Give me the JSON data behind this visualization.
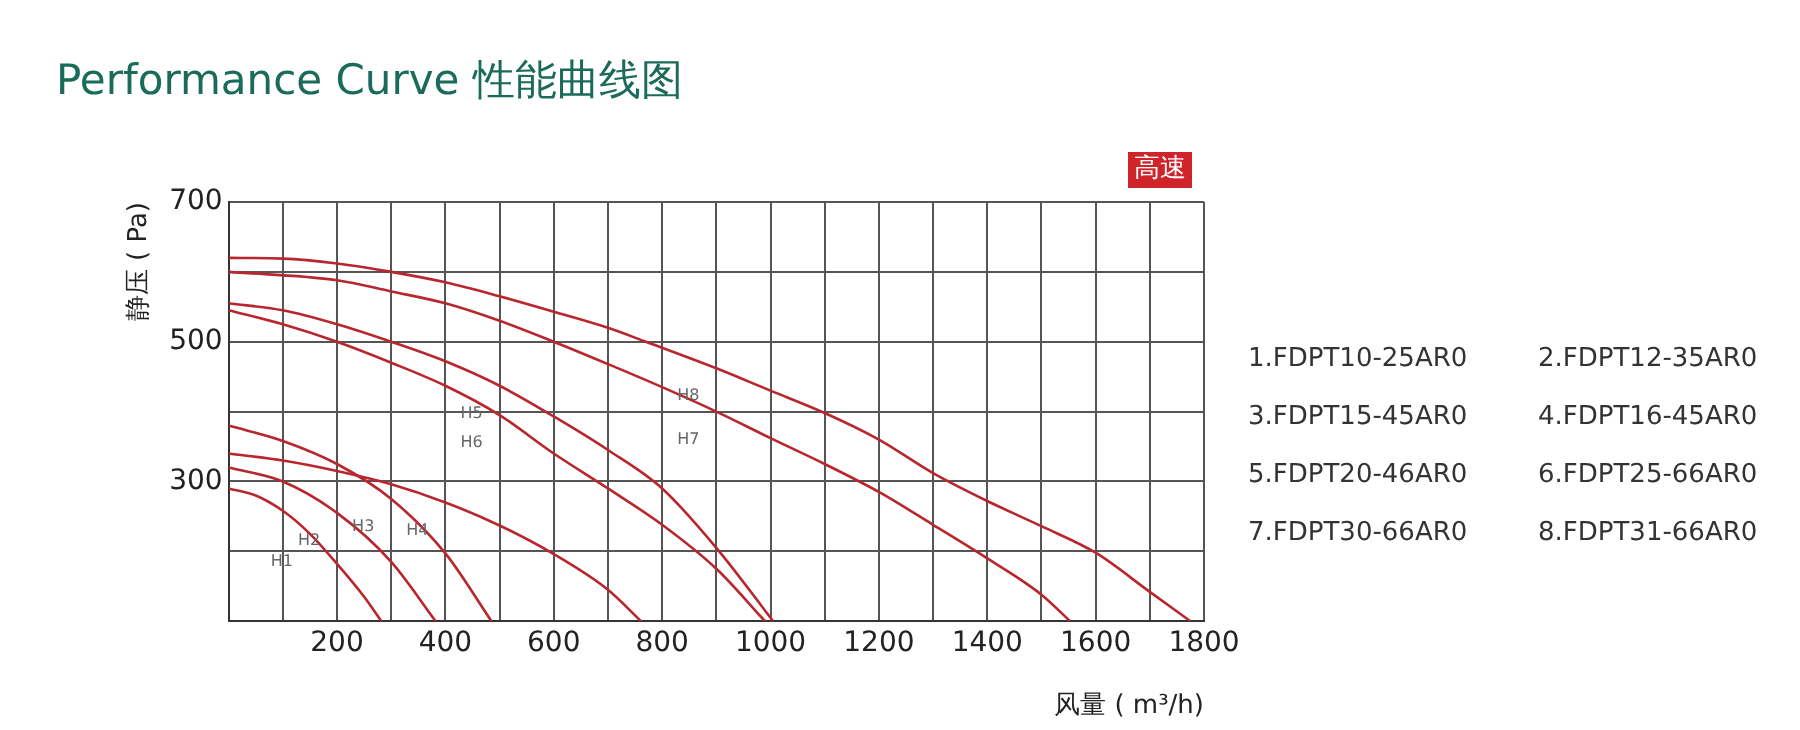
{
  "chart_data": {
    "type": "line",
    "title": "Performance Curve 性能曲线图",
    "xlabel": "风量 ( m³/h)",
    "ylabel": "静压 ( Pa)",
    "xlim": [
      0,
      1800
    ],
    "ylim": [
      100,
      700
    ],
    "xticks": [
      {
        "value": 0,
        "label": null
      },
      {
        "value": 100,
        "label": null
      },
      200,
      {
        "value": 300,
        "label": null
      },
      400,
      {
        "value": 500,
        "label": null
      },
      600,
      {
        "value": 700,
        "label": null
      },
      800,
      {
        "value": 900,
        "label": null
      },
      1000,
      {
        "value": 1100,
        "label": null
      },
      1200,
      {
        "value": 1300,
        "label": null
      },
      1400,
      {
        "value": 1500,
        "label": null
      },
      1600,
      {
        "value": 1700,
        "label": null
      },
      1800
    ],
    "yticks": [
      {
        "value": 100,
        "label": null
      },
      {
        "value": 200,
        "label": null
      },
      300,
      {
        "value": 400,
        "label": null
      },
      500,
      {
        "value": 600,
        "label": null
      },
      700
    ],
    "grid": true,
    "legend": "right",
    "marker": "none",
    "line_style": "solid",
    "series": [
      {
        "name": "1.FDPT10-25AR0",
        "color": "#b8262e",
        "x": [
          0,
          50,
          100,
          150,
          200,
          250,
          282
        ],
        "values": [
          290,
          280,
          258,
          225,
          182,
          135,
          100
        ]
      },
      {
        "name": "2.FDPT12-35AR0",
        "color": "#b8262e",
        "x": [
          0,
          100,
          200,
          300,
          382
        ],
        "values": [
          320,
          300,
          255,
          185,
          100
        ]
      },
      {
        "name": "3.FDPT15-45AR0",
        "color": "#b8262e",
        "x": [
          0,
          100,
          200,
          300,
          400,
          485
        ],
        "values": [
          380,
          358,
          325,
          275,
          197,
          100
        ]
      },
      {
        "name": "4.FDPT16-45AR0",
        "color": "#b8262e",
        "x": [
          0,
          100,
          200,
          300,
          400,
          500,
          600,
          700,
          761
        ],
        "values": [
          340,
          330,
          315,
          296,
          270,
          237,
          196,
          145,
          100
        ]
      },
      {
        "name": "5.FDPT20-46AR0",
        "color": "#b8262e",
        "x": [
          0,
          100,
          200,
          300,
          400,
          500,
          600,
          700,
          800,
          900,
          1005
        ],
        "values": [
          555,
          545,
          525,
          500,
          472,
          437,
          393,
          345,
          290,
          205,
          100
        ]
      },
      {
        "name": "6.FDPT25-66AR0",
        "color": "#b8262e",
        "x": [
          0,
          100,
          200,
          300,
          400,
          500,
          600,
          700,
          800,
          900,
          990
        ],
        "values": [
          545,
          525,
          500,
          470,
          437,
          395,
          340,
          290,
          238,
          175,
          100
        ]
      },
      {
        "name": "7.FDPT30-66AR0",
        "color": "#b8262e",
        "x": [
          0,
          200,
          300,
          400,
          500,
          600,
          700,
          800,
          900,
          1000,
          1100,
          1200,
          1300,
          1400,
          1500,
          1553
        ],
        "values": [
          600,
          588,
          572,
          555,
          530,
          500,
          468,
          435,
          400,
          362,
          325,
          285,
          238,
          190,
          138,
          100
        ]
      },
      {
        "name": "8.FDPT31-66AR0",
        "color": "#b8262e",
        "x": [
          0,
          100,
          200,
          300,
          400,
          500,
          600,
          700,
          770,
          900,
          1000,
          1100,
          1200,
          1300,
          1400,
          1500,
          1600,
          1700,
          1775
        ],
        "values": [
          620,
          619,
          612,
          600,
          585,
          565,
          543,
          520,
          500,
          462,
          430,
          398,
          360,
          312,
          272,
          236,
          198,
          142,
          100
        ]
      }
    ],
    "annotations": [
      "高速",
      "H1",
      "H2",
      "H3",
      "H4",
      "H5",
      "H6",
      "H7",
      "H8"
    ]
  }
}
